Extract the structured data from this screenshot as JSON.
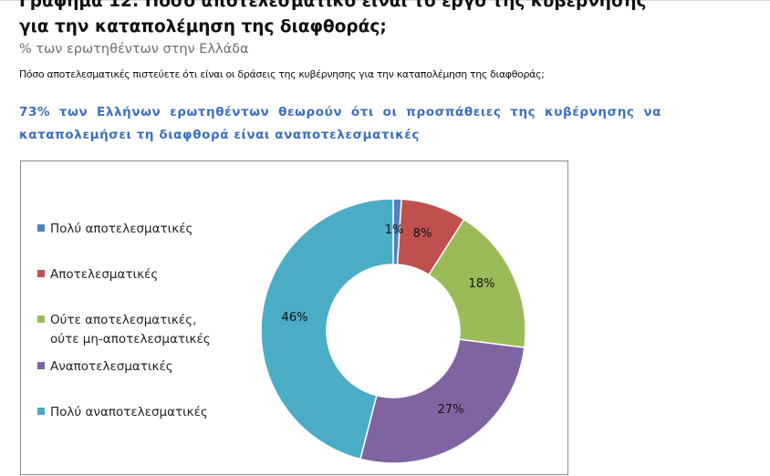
{
  "document": {
    "title": "Γράφημα 12: Πόσο αποτελεσματικό είναι το έργο της κυβέρνησης για την καταπολέμηση της διαφθοράς;",
    "subtitle": "% των ερωτηθέντων στην Ελλάδα",
    "question": "Πόσο αποτελεσματικές πιστεύετε ότι είναι οι δράσεις της κυβέρνησης για την καταπολέμηση της διαφθοράς;",
    "highlight": "73% των Ελλήνων ερωτηθέντων θεωρούν ότι οι προσπάθειες της κυβέρνησης να καταπολεμήσει τη διαφθορά είναι αναποτελεσματικές"
  },
  "chart_data": {
    "type": "pie",
    "variant": "donut",
    "legend_position": "left",
    "slices": [
      {
        "label": "Πολύ αποτελεσματικές",
        "value": 1,
        "display": "1%",
        "color": "#4f81bd"
      },
      {
        "label": "Αποτελεσματικές",
        "value": 8,
        "display": "8%",
        "color": "#c0504d"
      },
      {
        "label": "Ούτε αποτελεσματικές,\nούτε μη-αποτελεσματικές",
        "value": 18,
        "display": "18%",
        "color": "#9bbb59"
      },
      {
        "label": "Αναποτελεσματικές",
        "value": 27,
        "display": "27%",
        "color": "#8064a2"
      },
      {
        "label": "Πολύ αναποτελεσματικές",
        "value": 46,
        "display": "46%",
        "color": "#4bacc6"
      }
    ]
  }
}
